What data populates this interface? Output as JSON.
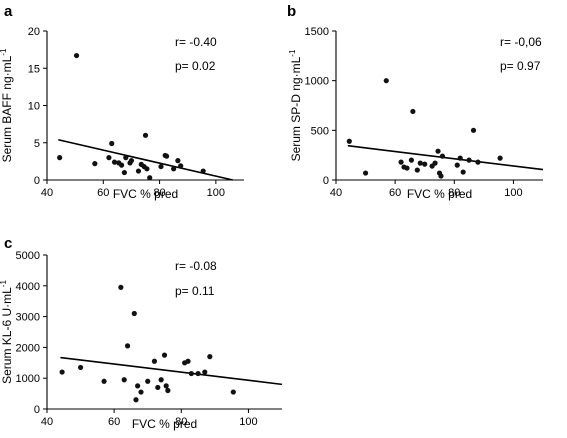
{
  "chart_data": [
    {
      "panel": "a",
      "type": "scatter",
      "xlabel": "FVC % pred",
      "ylabel": "Serum BAFF ng·mL",
      "ylabel_sup": "-1",
      "xlim": [
        40,
        110
      ],
      "ylim": [
        0,
        20
      ],
      "xticks": [
        "40",
        "60",
        "80",
        "100"
      ],
      "yticks": [
        "0",
        "5",
        "10",
        "15",
        "20"
      ],
      "stats": {
        "r": "r= -0.40",
        "p": "p= 0.02"
      },
      "points": [
        {
          "x": 44.5,
          "y": 3.0
        },
        {
          "x": 50.5,
          "y": 16.7
        },
        {
          "x": 57,
          "y": 2.2
        },
        {
          "x": 62,
          "y": 3.0
        },
        {
          "x": 63,
          "y": 4.9
        },
        {
          "x": 64,
          "y": 2.4
        },
        {
          "x": 65.5,
          "y": 2.3
        },
        {
          "x": 66.5,
          "y": 2.0
        },
        {
          "x": 67.5,
          "y": 1.0
        },
        {
          "x": 68,
          "y": 3.0
        },
        {
          "x": 69.5,
          "y": 2.3
        },
        {
          "x": 70,
          "y": 2.6
        },
        {
          "x": 72.5,
          "y": 1.2
        },
        {
          "x": 73.5,
          "y": 2.1
        },
        {
          "x": 74.5,
          "y": 1.8
        },
        {
          "x": 75,
          "y": 6.0
        },
        {
          "x": 75.5,
          "y": 1.5
        },
        {
          "x": 76.5,
          "y": 0.3
        },
        {
          "x": 80.5,
          "y": 1.8
        },
        {
          "x": 82,
          "y": 3.3
        },
        {
          "x": 82.5,
          "y": 3.2
        },
        {
          "x": 85,
          "y": 1.5
        },
        {
          "x": 86.5,
          "y": 2.6
        },
        {
          "x": 87.5,
          "y": 1.9
        },
        {
          "x": 95.5,
          "y": 1.2
        }
      ],
      "regression": {
        "x": [
          44,
          106
        ],
        "y": [
          5.4,
          0
        ]
      }
    },
    {
      "panel": "b",
      "type": "scatter",
      "xlabel": "FVC % pred",
      "ylabel": "Serum SP-D ng·mL",
      "ylabel_sup": "-1",
      "xlim": [
        40,
        110
      ],
      "ylim": [
        0,
        1500
      ],
      "xticks": [
        "40",
        "60",
        "80",
        "100"
      ],
      "yticks": [
        "0",
        "500",
        "1000",
        "1500"
      ],
      "stats": {
        "r": "r= -0,06",
        "p": "p= 0.97"
      },
      "points": [
        {
          "x": 44.5,
          "y": 390
        },
        {
          "x": 50,
          "y": 70
        },
        {
          "x": 57,
          "y": 1000
        },
        {
          "x": 62,
          "y": 180
        },
        {
          "x": 63,
          "y": 130
        },
        {
          "x": 64,
          "y": 120
        },
        {
          "x": 65.5,
          "y": 200
        },
        {
          "x": 66,
          "y": 690
        },
        {
          "x": 67.5,
          "y": 100
        },
        {
          "x": 68.5,
          "y": 170
        },
        {
          "x": 70,
          "y": 160
        },
        {
          "x": 72.5,
          "y": 140
        },
        {
          "x": 73.5,
          "y": 170
        },
        {
          "x": 74.5,
          "y": 290
        },
        {
          "x": 75,
          "y": 70
        },
        {
          "x": 75.5,
          "y": 40
        },
        {
          "x": 76,
          "y": 240
        },
        {
          "x": 81,
          "y": 150
        },
        {
          "x": 82,
          "y": 220
        },
        {
          "x": 83,
          "y": 80
        },
        {
          "x": 85,
          "y": 200
        },
        {
          "x": 86.5,
          "y": 500
        },
        {
          "x": 88,
          "y": 180
        },
        {
          "x": 95.5,
          "y": 220
        }
      ],
      "regression": {
        "x": [
          44,
          110
        ],
        "y": [
          345,
          105
        ]
      }
    },
    {
      "panel": "c",
      "type": "scatter",
      "xlabel": "FVC % pred",
      "ylabel": "Serum KL-6 U·mL",
      "ylabel_sup": "-1",
      "xlim": [
        40,
        110
      ],
      "ylim": [
        0,
        5000
      ],
      "xticks": [
        "40",
        "60",
        "80",
        "100"
      ],
      "yticks": [
        "0",
        "1000",
        "2000",
        "3000",
        "4000",
        "5000"
      ],
      "stats": {
        "r": "r= -0.08",
        "p": "p= 0.11"
      },
      "points": [
        {
          "x": 44.5,
          "y": 1200
        },
        {
          "x": 50,
          "y": 1350
        },
        {
          "x": 57,
          "y": 900
        },
        {
          "x": 62,
          "y": 3950
        },
        {
          "x": 63,
          "y": 950
        },
        {
          "x": 64,
          "y": 2050
        },
        {
          "x": 66,
          "y": 3100
        },
        {
          "x": 66.5,
          "y": 300
        },
        {
          "x": 67,
          "y": 750
        },
        {
          "x": 68,
          "y": 550
        },
        {
          "x": 70,
          "y": 900
        },
        {
          "x": 72,
          "y": 1550
        },
        {
          "x": 73,
          "y": 700
        },
        {
          "x": 74,
          "y": 950
        },
        {
          "x": 75,
          "y": 1750
        },
        {
          "x": 75.5,
          "y": 750
        },
        {
          "x": 76,
          "y": 600
        },
        {
          "x": 81,
          "y": 1500
        },
        {
          "x": 82,
          "y": 1550
        },
        {
          "x": 83,
          "y": 1150
        },
        {
          "x": 85,
          "y": 1150
        },
        {
          "x": 87,
          "y": 1200
        },
        {
          "x": 88.5,
          "y": 1700
        },
        {
          "x": 95.5,
          "y": 550
        }
      ],
      "regression": {
        "x": [
          44,
          110
        ],
        "y": [
          1670,
          800
        ]
      }
    }
  ]
}
